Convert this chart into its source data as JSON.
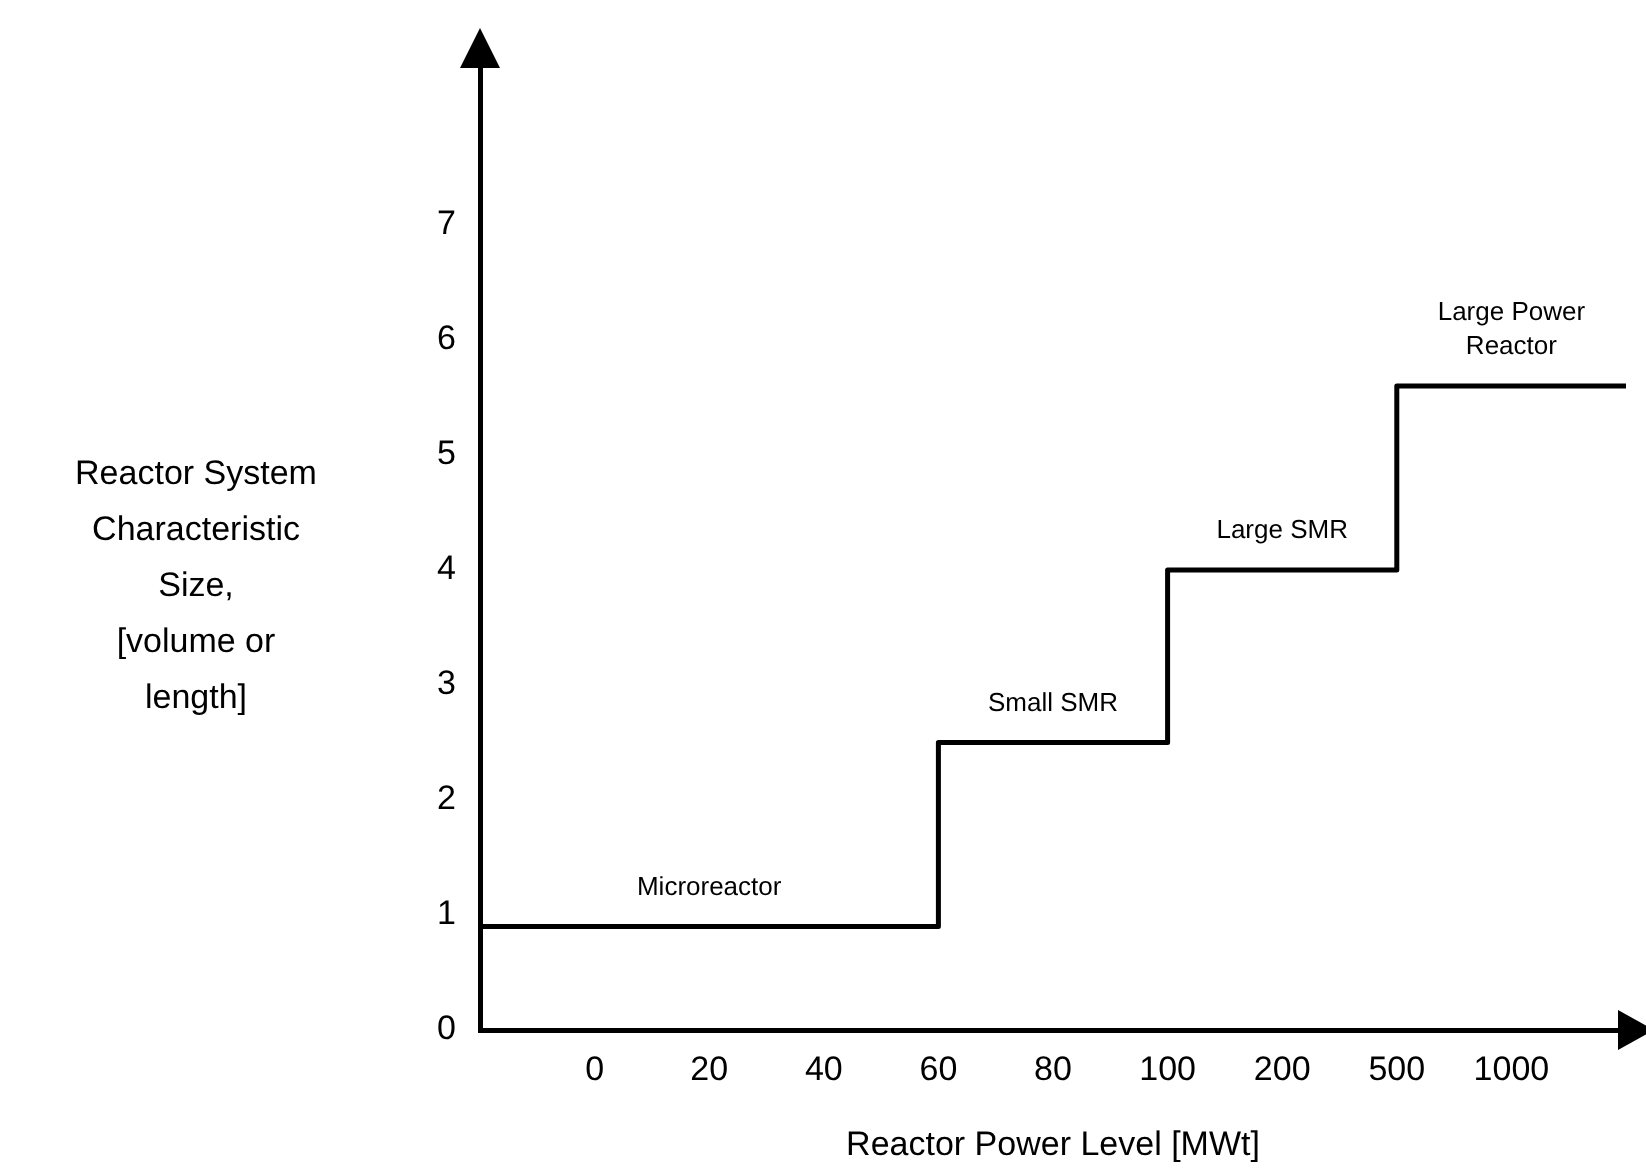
{
  "chart_data": {
    "type": "step",
    "xlabel": "Reactor Power Level [MWt]",
    "ylabel": "Reactor System\nCharacteristic\nSize,\n[volume or\nlength]",
    "categories": [
      null,
      "0",
      "20",
      "40",
      "60",
      "80",
      "100",
      "200",
      "500",
      "1000",
      null
    ],
    "series": [
      {
        "color": "#000000",
        "values": [
          0.9,
          0.9,
          0.9,
          0.9,
          2.5,
          2.5,
          4.0,
          4.0,
          5.6,
          5.6,
          5.6
        ]
      }
    ],
    "ylim": [
      0,
      8.4
    ],
    "yticks": [
      0,
      1,
      2,
      3,
      4,
      5,
      6,
      7
    ],
    "annotations": [
      "Microreactor",
      "Small SMR",
      "Large SMR",
      "Large Power\nReactor"
    ],
    "grid": false,
    "legend": false,
    "marker": "none",
    "line_style": "solid"
  }
}
